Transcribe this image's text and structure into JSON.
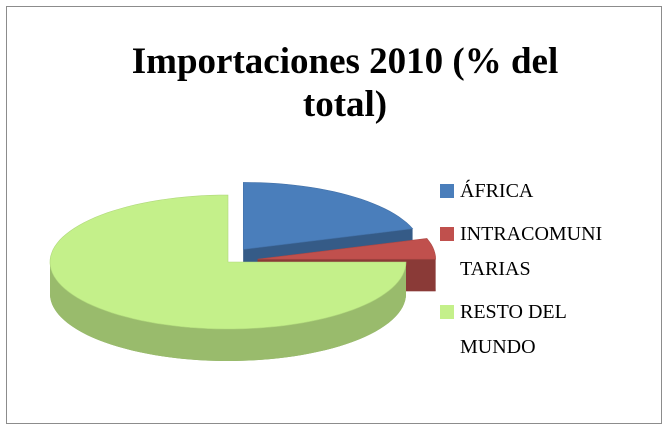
{
  "chart_data": {
    "type": "pie",
    "title": "Importaciones 2010 (% del total)",
    "categories": [
      "ÁFRICA",
      "INTRACOMUNITARIAS",
      "RESTO DEL MUNDO"
    ],
    "values": [
      20,
      5,
      75
    ],
    "colors": [
      "#4a7ebb",
      "#c0504d",
      "#c4f08a"
    ],
    "legend": "right"
  }
}
